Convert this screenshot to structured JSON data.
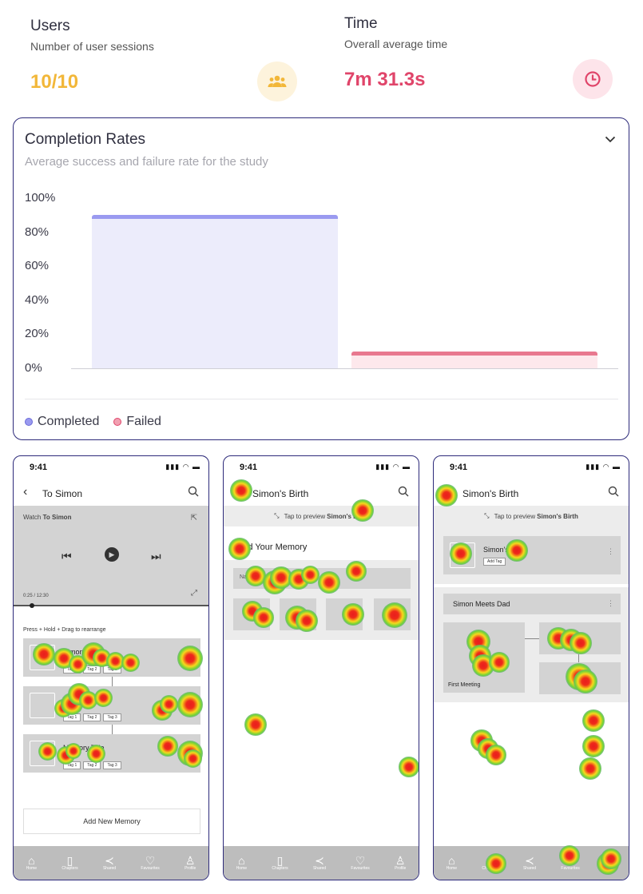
{
  "stats": {
    "users": {
      "title": "Users",
      "subtitle": "Number of user sessions",
      "value": "10/10",
      "icon": "users-icon",
      "color": "#f2b739",
      "icon_bg": "#fdf3dc"
    },
    "time": {
      "title": "Time",
      "subtitle": "Overall average time",
      "value": "7m 31.3s",
      "icon": "clock-icon",
      "color": "#e0456a",
      "icon_bg": "#fde4ea"
    }
  },
  "completion": {
    "title": "Completion Rates",
    "subtitle": "Average success and failure rate for the study",
    "legend": [
      "Completed",
      "Failed"
    ]
  },
  "chart_data": {
    "type": "bar",
    "categories": [
      "Completed",
      "Failed"
    ],
    "values": [
      90,
      10
    ],
    "yticks": [
      "100%",
      "80%",
      "60%",
      "40%",
      "20%",
      "0%"
    ],
    "ylim": [
      0,
      100
    ],
    "colors": {
      "completed_fill": "#ececfb",
      "completed_top": "#9a9af0",
      "failed_fill": "#fde8ec",
      "failed_top": "#e8788f"
    },
    "title": "",
    "xlabel": "",
    "ylabel": "",
    "grid": false,
    "legend_position": "bottom-left"
  },
  "phones": {
    "status_time": "9:41",
    "p1": {
      "title": "To Simon",
      "watch_prefix": "Watch",
      "watch_name": "To Simon",
      "progress": "0:25 / 12:30",
      "hint_strong": "Press + Hold + Drag",
      "hint_rest": " to rearrange",
      "memories": [
        {
          "title": "Simon's Birth",
          "tags": [
            "Tag 1",
            "Tag 2",
            "Tag 3"
          ]
        },
        {
          "title": "Memory Title",
          "tags": [
            "Tag 1",
            "Tag 2",
            "Tag 3"
          ]
        },
        {
          "title": "Memory Title",
          "tags": [
            "Tag 1",
            "Tag 2",
            "Tag 3"
          ]
        }
      ],
      "add_label": "Add New Memory"
    },
    "p2": {
      "title": "Simon's Birth",
      "preview_prefix": "Tap to preview ",
      "preview_name": "Simon's Birth",
      "section": "Build Your Memory",
      "field": "Name"
    },
    "p3": {
      "title": "Simon's Birth",
      "preview_prefix": "Tap to preview ",
      "preview_name": "Simon's Birth",
      "card_title": "Simon's Birth",
      "card_tag": "Add Tag",
      "group": "Simon Meets Dad",
      "photo_label": "First Meeting"
    },
    "nav": [
      "Home",
      "Chapters",
      "Shared",
      "Favourites",
      "Profile"
    ]
  }
}
